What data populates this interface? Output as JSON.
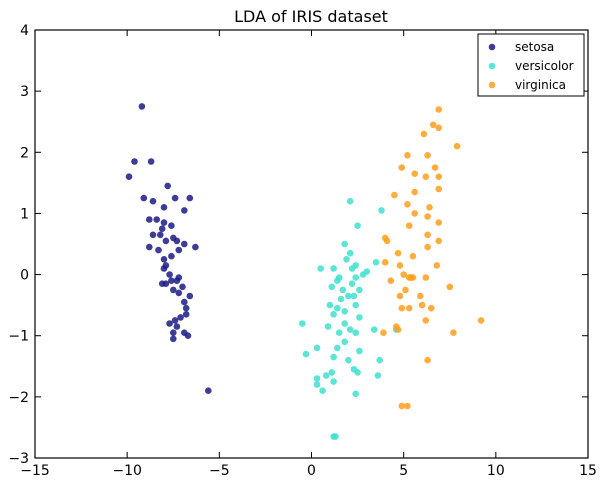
{
  "chart_data": {
    "type": "scatter",
    "title": "LDA of IRIS dataset",
    "xlabel": "",
    "ylabel": "",
    "xlim": [
      -15,
      15
    ],
    "ylim": [
      -3,
      4
    ],
    "xticks": [
      -15,
      -10,
      -5,
      0,
      5,
      10,
      15
    ],
    "yticks": [
      -3,
      -2,
      -1,
      0,
      1,
      2,
      3,
      4
    ],
    "legend_position": "top-right",
    "grid": false,
    "series": [
      {
        "name": "setosa",
        "color": "#1b1b86",
        "points": [
          [
            -9.2,
            2.75
          ],
          [
            -9.6,
            1.85
          ],
          [
            -8.7,
            1.85
          ],
          [
            -9.9,
            1.6
          ],
          [
            -9.1,
            1.25
          ],
          [
            -7.8,
            1.45
          ],
          [
            -8.6,
            1.2
          ],
          [
            -7.4,
            1.25
          ],
          [
            -6.6,
            1.25
          ],
          [
            -8.0,
            1.1
          ],
          [
            -6.9,
            1.05
          ],
          [
            -8.4,
            0.9
          ],
          [
            -8.8,
            0.9
          ],
          [
            -8.0,
            0.85
          ],
          [
            -7.6,
            0.8
          ],
          [
            -8.1,
            0.75
          ],
          [
            -8.2,
            0.65
          ],
          [
            -8.6,
            0.65
          ],
          [
            -7.9,
            0.55
          ],
          [
            -7.5,
            0.6
          ],
          [
            -7.3,
            0.55
          ],
          [
            -6.9,
            0.5
          ],
          [
            -6.3,
            0.45
          ],
          [
            -8.8,
            0.45
          ],
          [
            -8.3,
            0.4
          ],
          [
            -7.2,
            0.4
          ],
          [
            -7.6,
            0.3
          ],
          [
            -8.0,
            0.25
          ],
          [
            -7.9,
            0.15
          ],
          [
            -8.0,
            0.1
          ],
          [
            -7.7,
            0.0
          ],
          [
            -7.2,
            -0.05
          ],
          [
            -7.6,
            -0.1
          ],
          [
            -8.1,
            -0.15
          ],
          [
            -7.9,
            -0.15
          ],
          [
            -7.3,
            -0.1
          ],
          [
            -7.0,
            -0.2
          ],
          [
            -7.5,
            -0.25
          ],
          [
            -7.2,
            -0.3
          ],
          [
            -6.6,
            -0.35
          ],
          [
            -6.9,
            -0.45
          ],
          [
            -6.8,
            -0.55
          ],
          [
            -6.8,
            -0.65
          ],
          [
            -7.1,
            -0.7
          ],
          [
            -7.4,
            -0.75
          ],
          [
            -7.7,
            -0.8
          ],
          [
            -7.3,
            -0.85
          ],
          [
            -7.5,
            -0.95
          ],
          [
            -6.9,
            -0.95
          ],
          [
            -6.7,
            -1.0
          ],
          [
            -7.5,
            -1.05
          ],
          [
            -5.6,
            -1.9
          ]
        ]
      },
      {
        "name": "versicolor",
        "color": "#40e0d0",
        "points": [
          [
            2.1,
            1.2
          ],
          [
            3.8,
            1.05
          ],
          [
            2.5,
            0.8
          ],
          [
            1.8,
            0.5
          ],
          [
            2.1,
            0.35
          ],
          [
            1.9,
            0.25
          ],
          [
            3.5,
            0.2
          ],
          [
            2.4,
            0.15
          ],
          [
            0.5,
            0.1
          ],
          [
            1.2,
            0.1
          ],
          [
            2.2,
            0.1
          ],
          [
            3.0,
            0.05
          ],
          [
            2.8,
            0.0
          ],
          [
            1.5,
            -0.05
          ],
          [
            2.4,
            -0.05
          ],
          [
            1.4,
            -0.1
          ],
          [
            2.2,
            -0.15
          ],
          [
            1.1,
            -0.2
          ],
          [
            1.7,
            -0.25
          ],
          [
            2.6,
            -0.25
          ],
          [
            2.0,
            -0.35
          ],
          [
            2.3,
            -0.35
          ],
          [
            1.6,
            -0.4
          ],
          [
            1.0,
            -0.5
          ],
          [
            1.4,
            -0.55
          ],
          [
            2.4,
            -0.5
          ],
          [
            1.8,
            -0.6
          ],
          [
            1.2,
            -0.65
          ],
          [
            2.6,
            -0.7
          ],
          [
            -0.5,
            -0.8
          ],
          [
            0.9,
            -0.85
          ],
          [
            1.8,
            -0.8
          ],
          [
            2.1,
            -0.9
          ],
          [
            1.5,
            -0.95
          ],
          [
            2.4,
            -0.95
          ],
          [
            3.4,
            -0.9
          ],
          [
            1.8,
            -1.1
          ],
          [
            1.4,
            -1.2
          ],
          [
            0.3,
            -1.2
          ],
          [
            2.6,
            -1.25
          ],
          [
            -0.3,
            -1.3
          ],
          [
            1.2,
            -1.35
          ],
          [
            2.0,
            -1.4
          ],
          [
            3.7,
            -1.4
          ],
          [
            1.1,
            -1.6
          ],
          [
            2.3,
            -1.55
          ],
          [
            2.5,
            -1.6
          ],
          [
            0.8,
            -1.65
          ],
          [
            3.6,
            -1.65
          ],
          [
            0.3,
            -1.7
          ],
          [
            1.2,
            -1.75
          ],
          [
            0.3,
            -1.8
          ],
          [
            0.6,
            -1.9
          ],
          [
            2.4,
            -1.95
          ],
          [
            1.2,
            -2.65
          ],
          [
            1.3,
            -2.65
          ],
          [
            4.6,
            -0.9
          ]
        ]
      },
      {
        "name": "virginica",
        "color": "#ff9f1c",
        "points": [
          [
            6.9,
            2.7
          ],
          [
            6.6,
            2.45
          ],
          [
            6.9,
            2.4
          ],
          [
            6.1,
            2.3
          ],
          [
            7.9,
            2.1
          ],
          [
            5.2,
            1.95
          ],
          [
            6.3,
            1.95
          ],
          [
            4.9,
            1.75
          ],
          [
            6.7,
            1.75
          ],
          [
            5.6,
            1.65
          ],
          [
            6.2,
            1.6
          ],
          [
            6.9,
            1.6
          ],
          [
            4.5,
            1.3
          ],
          [
            5.6,
            1.35
          ],
          [
            6.9,
            1.4
          ],
          [
            5.2,
            1.15
          ],
          [
            6.4,
            1.1
          ],
          [
            5.6,
            1.0
          ],
          [
            6.3,
            0.95
          ],
          [
            5.3,
            0.8
          ],
          [
            6.9,
            0.85
          ],
          [
            6.3,
            0.65
          ],
          [
            6.9,
            0.55
          ],
          [
            4.0,
            0.6
          ],
          [
            4.1,
            0.55
          ],
          [
            6.3,
            0.45
          ],
          [
            4.7,
            0.35
          ],
          [
            5.5,
            0.3
          ],
          [
            4.0,
            0.2
          ],
          [
            4.8,
            0.15
          ],
          [
            6.8,
            0.15
          ],
          [
            5.0,
            0.0
          ],
          [
            5.3,
            -0.05
          ],
          [
            5.4,
            -0.05
          ],
          [
            5.5,
            -0.05
          ],
          [
            6.2,
            -0.05
          ],
          [
            4.3,
            -0.1
          ],
          [
            7.5,
            -0.2
          ],
          [
            5.1,
            -0.25
          ],
          [
            4.8,
            -0.35
          ],
          [
            5.9,
            -0.35
          ],
          [
            4.9,
            -0.55
          ],
          [
            6.0,
            -0.5
          ],
          [
            5.3,
            -0.55
          ],
          [
            6.5,
            -0.55
          ],
          [
            6.2,
            -0.75
          ],
          [
            9.2,
            -0.75
          ],
          [
            4.6,
            -0.85
          ],
          [
            4.7,
            -0.9
          ],
          [
            3.9,
            -0.95
          ],
          [
            7.7,
            -0.95
          ],
          [
            6.3,
            -1.4
          ],
          [
            4.9,
            -2.15
          ],
          [
            5.2,
            -2.15
          ]
        ]
      }
    ]
  }
}
